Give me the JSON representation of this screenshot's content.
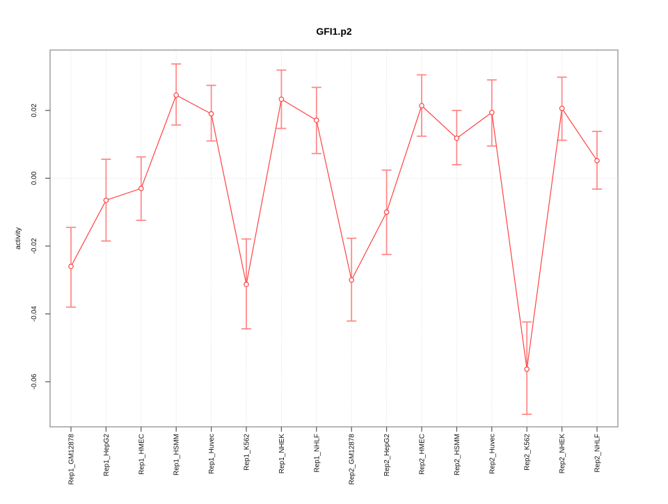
{
  "figure": {
    "title": "GFI1.p2",
    "ylabel": "activity"
  },
  "chart_data": {
    "type": "line",
    "title": "GFI1.p2",
    "xlabel": "",
    "ylabel": "activity",
    "legend": "none",
    "grid": "vertical dotted gridline at each category; horizontal dotted line at y=0",
    "point_style": "open-circle",
    "error_bars": true,
    "categories": [
      "Rep1_GM12878",
      "Rep1_HepG2",
      "Rep1_HMEC",
      "Rep1_HSMM",
      "Rep1_Huvec",
      "Rep1_K562",
      "Rep1_NHEK",
      "Rep1_NHLF",
      "Rep2_GM12878",
      "Rep2_HepG2",
      "Rep2_HMEC",
      "Rep2_HSMM",
      "Rep2_Huvec",
      "Rep2_K562",
      "Rep2_NHEK",
      "Rep2_NHLF"
    ],
    "series": [
      {
        "name": "activity",
        "values": [
          -0.026,
          -0.0065,
          -0.003,
          0.0245,
          0.019,
          -0.0313,
          0.0233,
          0.0171,
          -0.03,
          -0.01,
          0.0214,
          0.0118,
          0.0194,
          -0.0563,
          0.0206,
          0.0052
        ],
        "error_low": [
          -0.038,
          -0.0185,
          -0.0124,
          0.0157,
          0.011,
          -0.0444,
          0.0147,
          0.0073,
          -0.0421,
          -0.0225,
          0.0124,
          0.004,
          0.0095,
          -0.0696,
          0.0112,
          -0.0032
        ],
        "error_high": [
          -0.0145,
          0.0056,
          0.0063,
          0.0337,
          0.0274,
          -0.0179,
          0.0319,
          0.0268,
          -0.0177,
          0.0024,
          0.0305,
          0.02,
          0.029,
          -0.0424,
          0.0298,
          0.0138
        ]
      }
    ],
    "yticks": {
      "values": [
        0.02,
        0,
        -0.02,
        -0.04,
        -0.06
      ],
      "labels": [
        "0.02",
        "0.00",
        "-0.02",
        "-0.04",
        "-0.06"
      ]
    },
    "ylim": [
      -0.0733,
      0.0378
    ],
    "colors": {
      "line": "#ff4040",
      "point_stroke": "#ff4040",
      "point_fill": "#ffffff",
      "error_bar": "#ff8989",
      "gridline": "#dadada",
      "box": "#909090",
      "tick": "#555555",
      "tick_label": "#111111"
    }
  }
}
